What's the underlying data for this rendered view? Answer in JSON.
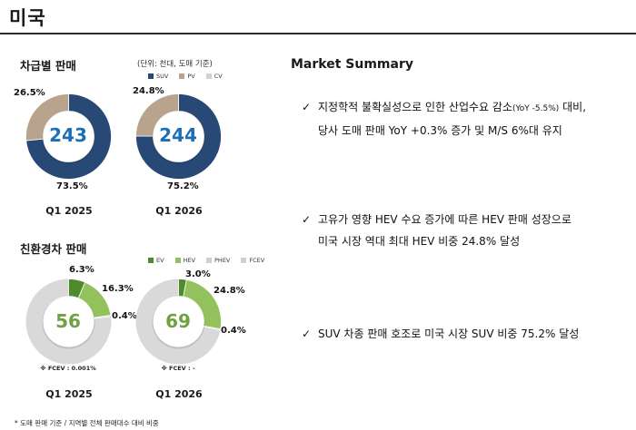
{
  "title": "미국",
  "sales_section": {
    "heading": "차급별 판매",
    "unit": "(단위: 천대, 도매 기준)",
    "legend": [
      {
        "label": "SUV",
        "color": "#284876"
      },
      {
        "label": "PV",
        "color": "#b8a48d"
      },
      {
        "label": "CV",
        "color": "#d0d0d0"
      }
    ],
    "period_2025": "Q1 2025",
    "period_2026": "Q1 2026"
  },
  "eco_section": {
    "heading": "친환경차 판매",
    "legend": [
      {
        "label": "EV",
        "color": "#4f8a2f"
      },
      {
        "label": "HEV",
        "color": "#93c25c"
      },
      {
        "label": "PHEV",
        "color": "#d0d0d0"
      },
      {
        "label": "FCEV",
        "color": "#d0d0d0"
      }
    ],
    "fcev_note_2025": "※ FCEV : 0.001%",
    "fcev_note_2026": "※ FCEV : -",
    "period_2025": "Q1 2025",
    "period_2026": "Q1 2026"
  },
  "chart_data": [
    {
      "type": "pie",
      "title": "Q1 2025",
      "total": "243",
      "categories": [
        "SUV",
        "PV"
      ],
      "values": [
        73.5,
        26.5
      ],
      "labels": [
        "73.5%",
        "26.5%"
      ],
      "colors": [
        "#284876",
        "#b8a48d"
      ]
    },
    {
      "type": "pie",
      "title": "Q1 2026",
      "total": "244",
      "categories": [
        "SUV",
        "PV"
      ],
      "values": [
        75.2,
        24.8
      ],
      "labels": [
        "75.2%",
        "24.8%"
      ],
      "colors": [
        "#284876",
        "#b8a48d"
      ]
    },
    {
      "type": "pie",
      "title": "Q1 2025",
      "total": "56",
      "categories": [
        "EV",
        "HEV",
        "PHEV"
      ],
      "values": [
        6.3,
        16.3,
        0.4
      ],
      "labels": [
        "6.3%",
        "16.3%",
        "0.4%"
      ],
      "colors": [
        "#4f8a2f",
        "#93c25c",
        "#b5b5b5"
      ],
      "remainder_color": "#d9d9d9"
    },
    {
      "type": "pie",
      "title": "Q1 2026",
      "total": "69",
      "categories": [
        "EV",
        "HEV",
        "PHEV"
      ],
      "values": [
        3.0,
        24.8,
        0.4
      ],
      "labels": [
        "3.0%",
        "24.8%",
        "0.4%"
      ],
      "colors": [
        "#4f8a2f",
        "#93c25c",
        "#b5b5b5"
      ],
      "remainder_color": "#d9d9d9"
    }
  ],
  "summary": {
    "heading": "Market Summary",
    "b1_l1_a": "지정학적 불확실성으로 인한 산업수요 감소",
    "b1_l1_small": "(YoY -5.5%)",
    "b1_l1_b": " 대비,",
    "b1_l2": "당사 도매 판매 YoY +0.3% 증가 및 M/S 6%대 유지",
    "b2_l1": "고유가 영향 HEV 수요 증가에 따른 HEV 판매 성장으로",
    "b2_l2": "미국 시장 역대 최대 HEV 비중 24.8% 달성",
    "b3_l1": "SUV 차종 판매 호조로 미국 시장 SUV 비중 75.2%  달성",
    "check": "✓"
  },
  "footnote": "* 도매 판매 기준 / 지역별 전체 판매대수 대비 비중"
}
